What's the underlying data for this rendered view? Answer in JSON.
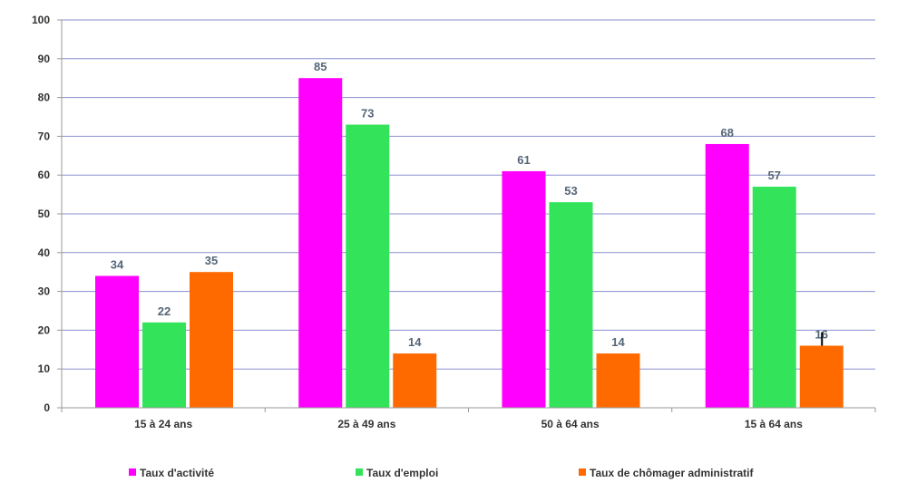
{
  "chart_data": {
    "type": "bar",
    "categories": [
      "15 à 24 ans",
      "25 à 49 ans",
      "50 à 64 ans",
      "15 à 64 ans"
    ],
    "series": [
      {
        "name": "Taux d'activité",
        "values": [
          34,
          85,
          61,
          68
        ],
        "labels": [
          "34",
          "85",
          "61",
          "68"
        ],
        "color": "#ff00ff"
      },
      {
        "name": "Taux d'emploi",
        "values": [
          22,
          73,
          53,
          57
        ],
        "labels": [
          "22",
          "73",
          "53",
          "57"
        ],
        "color": "#33e35a"
      },
      {
        "name": "Taux de chômager administratif",
        "values": [
          35,
          14,
          14,
          16
        ],
        "labels": [
          "35",
          "14",
          "14",
          "16"
        ],
        "color": "#ff6a00"
      }
    ],
    "yticks": [
      "0",
      "10",
      "20",
      "30",
      "40",
      "50",
      "60",
      "70",
      "80",
      "90",
      "100"
    ],
    "ylim": [
      0,
      100
    ],
    "grid": true,
    "grid_color": "#8a8fd0",
    "legend_position": "bottom",
    "title": "",
    "xlabel": "",
    "ylabel": ""
  }
}
